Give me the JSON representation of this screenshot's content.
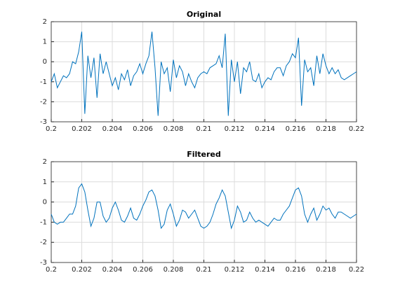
{
  "chart_data": [
    {
      "type": "line",
      "title": "Original",
      "color": "#0072bd",
      "grid": true,
      "xlim": [
        0.2,
        0.22
      ],
      "xticks": [
        0.2,
        0.202,
        0.204,
        0.206,
        0.208,
        0.21,
        0.212,
        0.214,
        0.216,
        0.218,
        0.22
      ],
      "ylim": [
        -3,
        2
      ],
      "yticks": [
        -3,
        -2,
        -1,
        0,
        1,
        2
      ],
      "x": [
        0.2,
        0.2002,
        0.2004,
        0.2006,
        0.2008,
        0.201,
        0.2012,
        0.2014,
        0.2016,
        0.2018,
        0.202,
        0.2022,
        0.2024,
        0.2026,
        0.2028,
        0.203,
        0.2032,
        0.2034,
        0.2036,
        0.2038,
        0.204,
        0.2042,
        0.2044,
        0.2046,
        0.2048,
        0.205,
        0.2052,
        0.2054,
        0.2056,
        0.2058,
        0.206,
        0.2062,
        0.2064,
        0.2066,
        0.2068,
        0.207,
        0.2072,
        0.2074,
        0.2076,
        0.2078,
        0.208,
        0.2082,
        0.2084,
        0.2086,
        0.2088,
        0.209,
        0.2092,
        0.2094,
        0.2096,
        0.2098,
        0.21,
        0.2102,
        0.2104,
        0.2106,
        0.2108,
        0.211,
        0.2112,
        0.2114,
        0.2116,
        0.2118,
        0.212,
        0.2122,
        0.2124,
        0.2126,
        0.2128,
        0.213,
        0.2132,
        0.2134,
        0.2136,
        0.2138,
        0.214,
        0.2142,
        0.2144,
        0.2146,
        0.2148,
        0.215,
        0.2152,
        0.2154,
        0.2156,
        0.2158,
        0.216,
        0.2162,
        0.2164,
        0.2166,
        0.2168,
        0.217,
        0.2172,
        0.2174,
        0.2176,
        0.2178,
        0.218,
        0.2182,
        0.2184,
        0.2186,
        0.2188,
        0.219,
        0.2192,
        0.2194,
        0.2196,
        0.2198,
        0.22
      ],
      "values": [
        -1,
        -0.6,
        -1.3,
        -1.0,
        -0.7,
        -0.8,
        -0.6,
        0,
        -0.1,
        0.5,
        1.5,
        -2.6,
        0.3,
        -0.8,
        0.2,
        -1.8,
        0.4,
        -0.6,
        0,
        -0.6,
        -1.2,
        -0.8,
        -1.4,
        -0.6,
        -0.9,
        -0.4,
        -1.2,
        -0.7,
        -0.5,
        -0.1,
        -0.6,
        -0.1,
        0.3,
        1.5,
        -0.3,
        -2.7,
        0,
        -0.6,
        -0.3,
        -1.5,
        0.1,
        -0.8,
        -0.2,
        -0.5,
        -1.2,
        -0.6,
        -1.0,
        -1.3,
        -0.8,
        -0.6,
        -0.5,
        -0.6,
        -0.3,
        -0.2,
        -0.1,
        0.3,
        -0.3,
        1.4,
        -2.7,
        0.1,
        -1.0,
        0,
        -1.6,
        -0.3,
        -0.5,
        0,
        -0.9,
        -1.0,
        -0.6,
        -1.3,
        -1.0,
        -0.8,
        -0.9,
        -0.5,
        -0.3,
        -0.3,
        -0.7,
        -0.2,
        0,
        0.4,
        0.2,
        1.2,
        -2.2,
        0.1,
        -0.5,
        -0.3,
        -1.2,
        0.3,
        -0.6,
        0.4,
        -0.2,
        -0.6,
        -0.3,
        -0.6,
        -0.4,
        -0.8,
        -0.9,
        -0.8,
        -0.7,
        -0.6,
        -0.5
      ]
    },
    {
      "type": "line",
      "title": "Filtered",
      "color": "#0072bd",
      "grid": true,
      "xlim": [
        0.2,
        0.22
      ],
      "xticks": [
        0.2,
        0.202,
        0.204,
        0.206,
        0.208,
        0.21,
        0.212,
        0.214,
        0.216,
        0.218,
        0.22
      ],
      "ylim": [
        -3,
        2
      ],
      "yticks": [
        -3,
        -2,
        -1,
        0,
        1,
        2
      ],
      "x": [
        0.2,
        0.2002,
        0.2004,
        0.2006,
        0.2008,
        0.201,
        0.2012,
        0.2014,
        0.2016,
        0.2018,
        0.202,
        0.2022,
        0.2024,
        0.2026,
        0.2028,
        0.203,
        0.2032,
        0.2034,
        0.2036,
        0.2038,
        0.204,
        0.2042,
        0.2044,
        0.2046,
        0.2048,
        0.205,
        0.2052,
        0.2054,
        0.2056,
        0.2058,
        0.206,
        0.2062,
        0.2064,
        0.2066,
        0.2068,
        0.207,
        0.2072,
        0.2074,
        0.2076,
        0.2078,
        0.208,
        0.2082,
        0.2084,
        0.2086,
        0.2088,
        0.209,
        0.2092,
        0.2094,
        0.2096,
        0.2098,
        0.21,
        0.2102,
        0.2104,
        0.2106,
        0.2108,
        0.211,
        0.2112,
        0.2114,
        0.2116,
        0.2118,
        0.212,
        0.2122,
        0.2124,
        0.2126,
        0.2128,
        0.213,
        0.2132,
        0.2134,
        0.2136,
        0.2138,
        0.214,
        0.2142,
        0.2144,
        0.2146,
        0.2148,
        0.215,
        0.2152,
        0.2154,
        0.2156,
        0.2158,
        0.216,
        0.2162,
        0.2164,
        0.2166,
        0.2168,
        0.217,
        0.2172,
        0.2174,
        0.2176,
        0.2178,
        0.218,
        0.2182,
        0.2184,
        0.2186,
        0.2188,
        0.219,
        0.2192,
        0.2194,
        0.2196,
        0.2198,
        0.22
      ],
      "values": [
        -0.6,
        -1.0,
        -1.1,
        -1.0,
        -1.0,
        -0.8,
        -0.6,
        -0.6,
        -0.2,
        0.7,
        0.9,
        0.5,
        -0.4,
        -1.2,
        -0.8,
        0.0,
        0.0,
        -0.7,
        -1.0,
        -0.8,
        -0.3,
        0.0,
        -0.4,
        -0.9,
        -1.0,
        -0.7,
        -0.3,
        -0.8,
        -0.9,
        -0.6,
        -0.2,
        0.1,
        0.5,
        0.6,
        0.3,
        -0.4,
        -1.3,
        -1.1,
        -0.4,
        -0.1,
        -0.6,
        -1.2,
        -0.9,
        -0.4,
        -0.5,
        -0.8,
        -0.6,
        -0.4,
        -0.8,
        -1.2,
        -1.3,
        -1.2,
        -1.0,
        -0.6,
        -0.1,
        0.2,
        0.6,
        0.3,
        -0.5,
        -1.3,
        -0.9,
        -0.2,
        -0.5,
        -1.0,
        -0.9,
        -0.5,
        -0.8,
        -1.0,
        -0.9,
        -1.0,
        -1.1,
        -1.2,
        -1.0,
        -0.8,
        -0.9,
        -0.9,
        -0.6,
        -0.4,
        -0.2,
        0.2,
        0.6,
        0.7,
        0.3,
        -0.6,
        -1.0,
        -0.6,
        -0.3,
        -0.9,
        -0.6,
        -0.2,
        -0.4,
        -0.3,
        -0.6,
        -0.8,
        -0.5,
        -0.5,
        -0.6,
        -0.7,
        -0.8,
        -0.7,
        -0.6
      ]
    }
  ]
}
